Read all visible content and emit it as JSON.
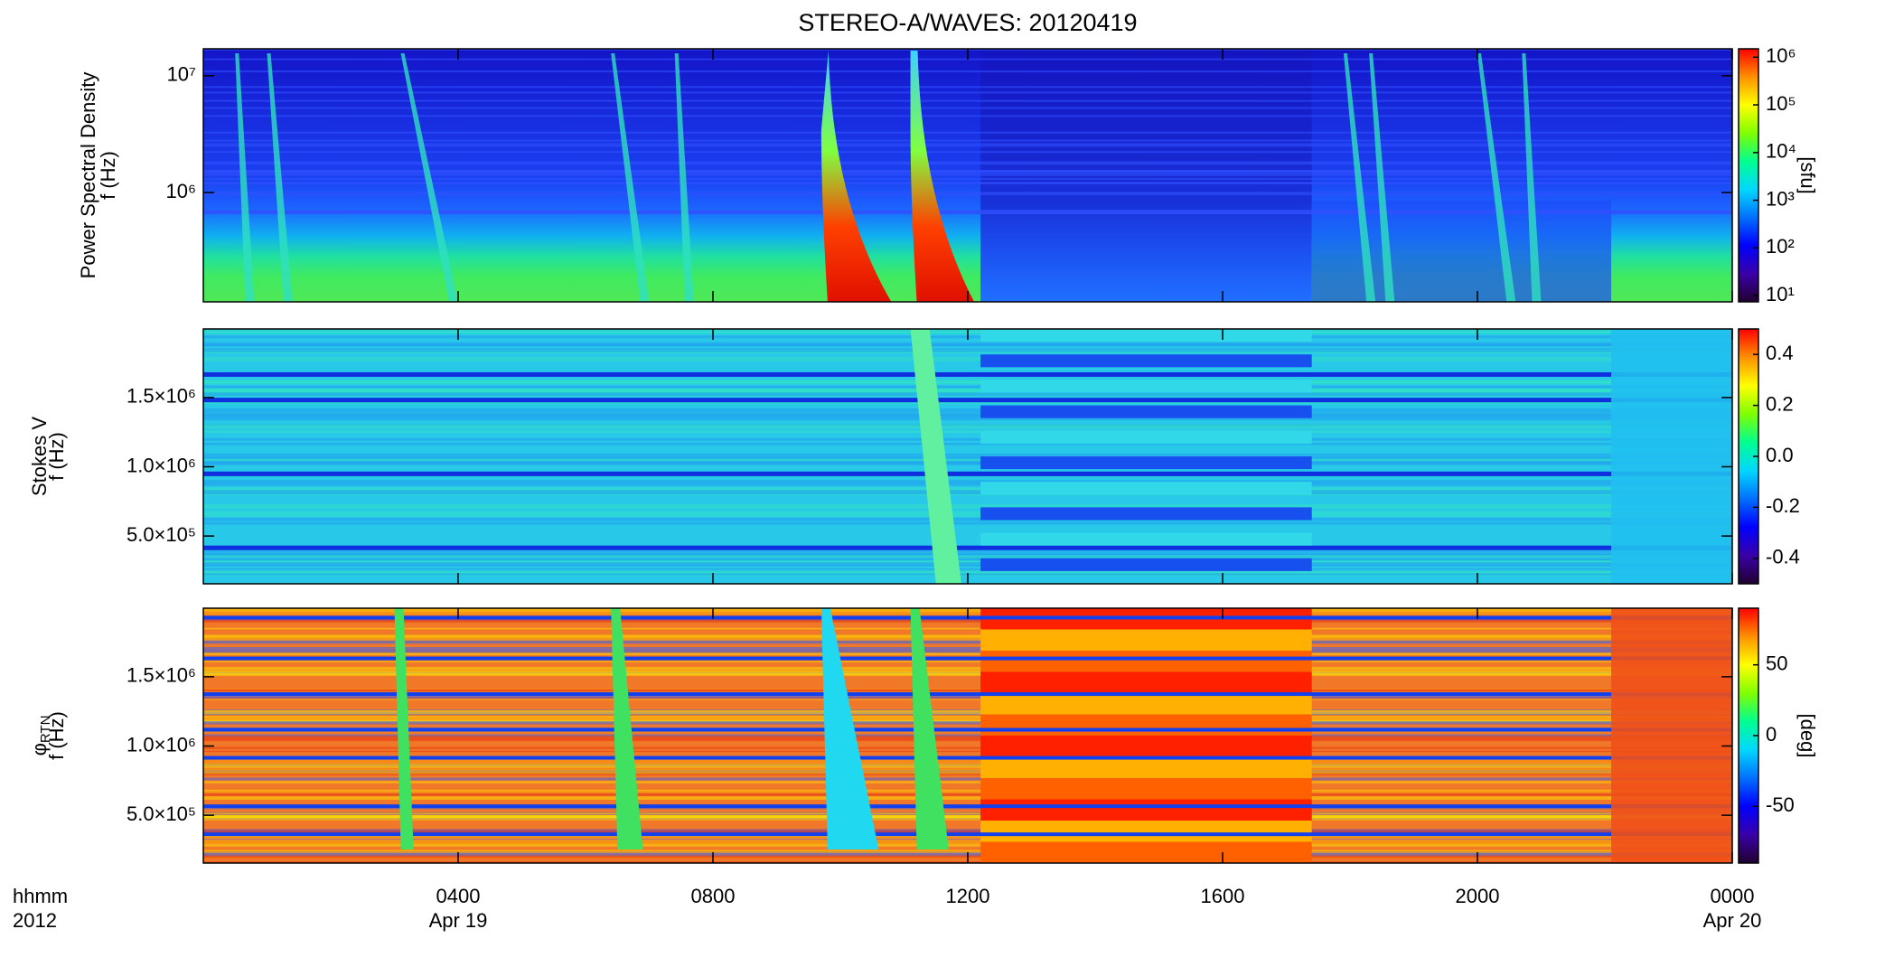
{
  "title": "STEREO-A/WAVES: 20120419",
  "colorscale": [
    "#200030",
    "#3a00a8",
    "#0000ff",
    "#0070ff",
    "#00d8ff",
    "#00ff90",
    "#80ff00",
    "#ffff00",
    "#ff9000",
    "#ff0000"
  ],
  "chart_data": [
    {
      "type": "spectrogram",
      "quantity": "Power Spectral Density",
      "ylabel": "f (Hz)",
      "yscale": "log",
      "ylim": [
        116000,
        17000000
      ],
      "yticks": [
        {
          "value": 1000000,
          "label": "10⁶"
        },
        {
          "value": 10000000,
          "label": "10⁷"
        }
      ],
      "colorbar": {
        "scale": "log",
        "lim": [
          7.4,
          1500000
        ],
        "ticks": [
          {
            "value": 10,
            "label": "10¹"
          },
          {
            "value": 100,
            "label": "10²"
          },
          {
            "value": 1000,
            "label": "10³"
          },
          {
            "value": 10000,
            "label": "10⁴"
          },
          {
            "value": 100000,
            "label": "10⁵"
          },
          {
            "value": 1000000,
            "label": "10⁶"
          }
        ],
        "label": "[sfu]"
      }
    },
    {
      "type": "spectrogram",
      "quantity": "Stokes V",
      "ylabel": "f (Hz)",
      "yscale": "linear",
      "ylim": [
        155000,
        1995000
      ],
      "yticks": [
        {
          "value": 500000,
          "label": "5.0×10⁵"
        },
        {
          "value": 1000000,
          "label": "1.0×10⁶"
        },
        {
          "value": 1500000,
          "label": "1.5×10⁶"
        }
      ],
      "colorbar": {
        "scale": "linear",
        "lim": [
          -0.5,
          0.5
        ],
        "ticks": [
          -0.4,
          -0.2,
          {
            "value": 0,
            "label": "0.0"
          },
          0.2,
          0.4
        ]
      }
    },
    {
      "type": "spectrogram",
      "quantity": "φ",
      "quantity_sub": "RTN",
      "ylabel": "f (Hz)",
      "yscale": "linear",
      "ylim": [
        155000,
        1995000
      ],
      "yticks": [
        {
          "value": 500000,
          "label": "5.0×10⁵"
        },
        {
          "value": 1000000,
          "label": "1.0×10⁶"
        },
        {
          "value": 1500000,
          "label": "1.5×10⁶"
        }
      ],
      "colorbar": {
        "scale": "linear",
        "lim": [
          -90,
          90
        ],
        "ticks": [
          -50,
          0,
          50
        ],
        "label": "[deg]"
      },
      "xlabel": [
        "hhmm",
        "2012"
      ],
      "xlim": [
        0,
        24
      ],
      "xticks": [
        {
          "value": 4,
          "label": "0400",
          "date": "Apr 19"
        },
        {
          "value": 8,
          "label": "0800"
        },
        {
          "value": 12,
          "label": "1200"
        },
        {
          "value": 16,
          "label": "1600"
        },
        {
          "value": 20,
          "label": "2000"
        },
        {
          "value": 24,
          "label": "0000",
          "date": "Apr 20"
        }
      ]
    }
  ]
}
